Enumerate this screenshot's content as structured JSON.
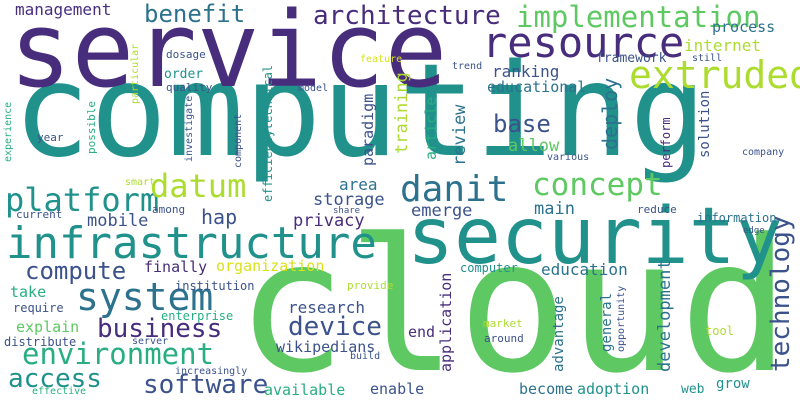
{
  "palette": {
    "dark_purple": "#472d7b",
    "indigo": "#3b528b",
    "slate": "#2c728e",
    "teal": "#21918c",
    "green_teal": "#28ae80",
    "green": "#5ec962",
    "lime": "#addc30",
    "yellow": "#e5e419",
    "deep": "#440154",
    "pale_yellow": "#d8e219"
  },
  "words": {
    "computing": "computing",
    "service": "service",
    "cloud": "cloud",
    "security": "security",
    "infrastructure": "infrastructure",
    "resource": "resource",
    "extruded": "extruded",
    "architecture": "architecture",
    "implementation": "implementation",
    "system": "system",
    "environment": "environment",
    "platform": "platform",
    "datum": "datum",
    "danit": "danit",
    "concept": "concept",
    "technology": "technology",
    "access": "access",
    "software": "software",
    "business": "business",
    "device": "device",
    "compute": "compute",
    "management": "management",
    "benefit": "benefit",
    "internet": "internet",
    "process": "process",
    "framework": "framework",
    "ranking": "ranking",
    "educational": "educational",
    "base": "base",
    "deploy": "deploy",
    "allow": "allow",
    "review": "review",
    "article": "article",
    "training": "training",
    "paradigm": "paradigm",
    "hap": "hap",
    "mobile": "mobile",
    "storage": "storage",
    "area": "area",
    "emerge": "emerge",
    "privacy": "privacy",
    "main": "main",
    "solution": "solution",
    "perform": "perform",
    "company": "company",
    "various": "various",
    "still": "still",
    "trend": "trend",
    "feature": "feature",
    "model": "model",
    "order": "order",
    "quality": "quality",
    "dosage": "dosage",
    "particular": "particular",
    "possible": "possible",
    "year": "year",
    "experience": "experience",
    "investigate": "investigate",
    "component": "component",
    "efficiency": "efficiency",
    "technical": "technical",
    "smart": "smart",
    "among": "among",
    "current": "current",
    "share": "share",
    "reduce": "reduce",
    "information": "information",
    "edge": "edge",
    "finally": "finally",
    "organization": "organization",
    "education": "education",
    "computer": "computer",
    "take": "take",
    "institution": "institution",
    "require": "require",
    "enterprise": "enterprise",
    "explain": "explain",
    "provide": "provide",
    "research": "research",
    "end": "end",
    "application": "application",
    "general": "general",
    "advantage": "advantage",
    "opportunity": "opportunity",
    "development": "development",
    "market": "market",
    "around": "around",
    "tool": "tool",
    "distribute": "distribute",
    "server": "server",
    "build": "build",
    "wikipedians": "wikipedians",
    "increasingly": "increasingly",
    "effective": "effective",
    "available": "available",
    "enable": "enable",
    "become": "become",
    "adoption": "adoption",
    "web": "web",
    "grow": "grow"
  }
}
